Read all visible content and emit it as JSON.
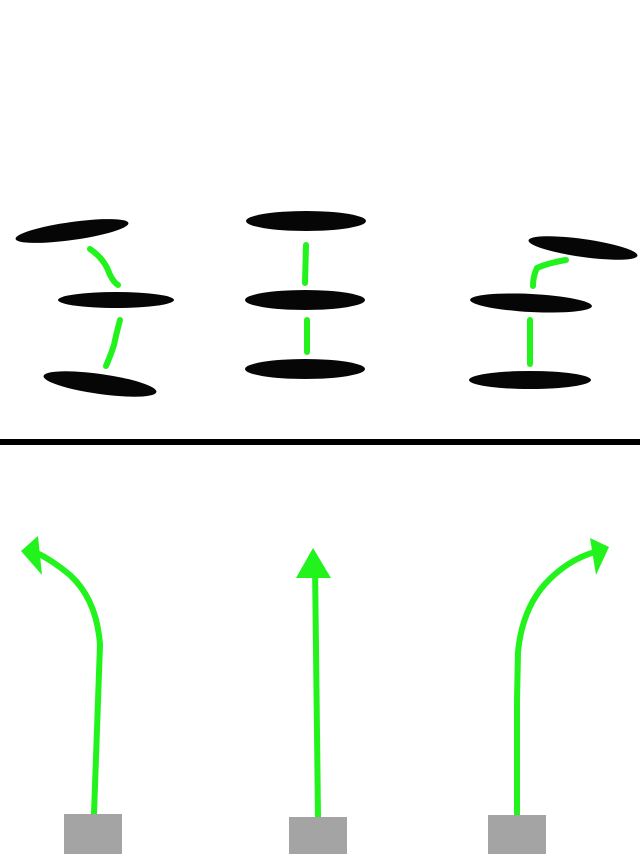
{
  "colors": {
    "background": "#ffffff",
    "disc": "#060606",
    "link": "#22f31c",
    "divider": "#000000",
    "block": "#a4a4a4",
    "arrow": "#22f31c"
  },
  "top_panel": {
    "stacks": [
      {
        "name": "stack-left",
        "discs": 3,
        "links": 2
      },
      {
        "name": "stack-center",
        "discs": 3,
        "links": 2
      },
      {
        "name": "stack-right",
        "discs": 3,
        "links": 2
      }
    ]
  },
  "bottom_panel": {
    "paths": [
      {
        "name": "path-left",
        "arrow_direction": "curves-left"
      },
      {
        "name": "path-center",
        "arrow_direction": "straight-up"
      },
      {
        "name": "path-right",
        "arrow_direction": "curves-right"
      }
    ]
  }
}
